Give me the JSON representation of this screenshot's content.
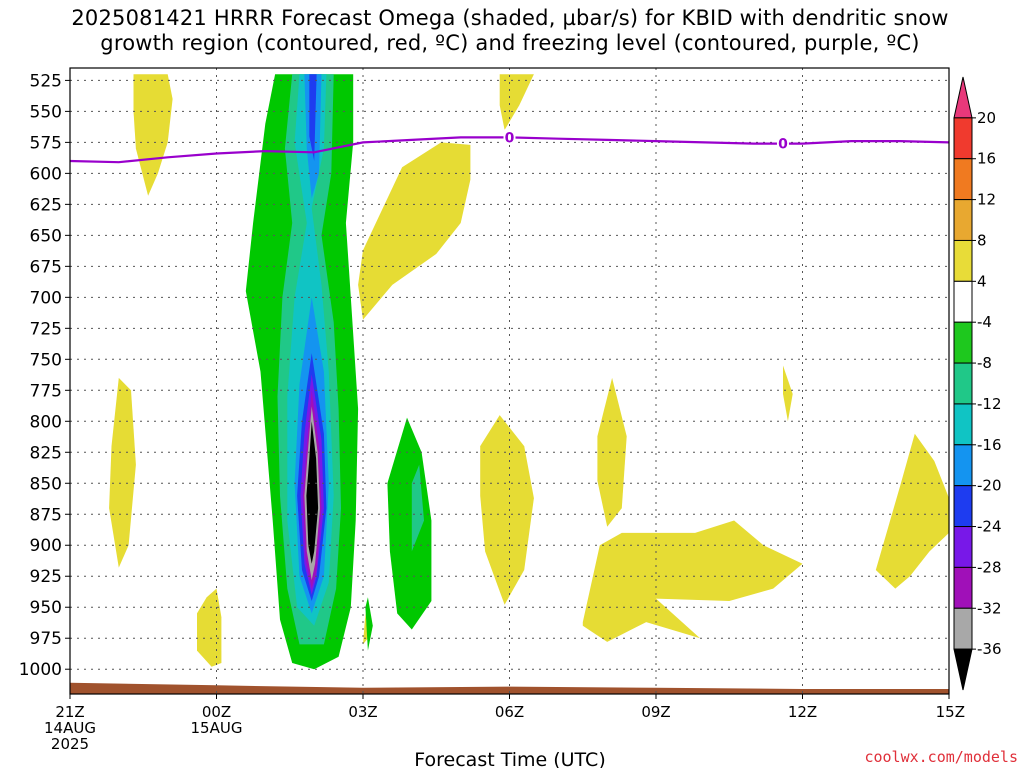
{
  "chart_data": {
    "type": "heatmap",
    "title_lines": [
      "2025081421 HRRR Forecast Omega (shaded, µbar/s) for KBID with dendritic snow",
      "growth region (contoured, red, ºC) and freezing level (contoured, purple, ºC)"
    ],
    "xlabel": "Forecast Time (UTC)",
    "ylabel": "",
    "credit": "coolwx.com/models",
    "x_unit": "hours since 21Z 14AUG 2025",
    "xlim": [
      0,
      18
    ],
    "ylim": [
      1020,
      515
    ],
    "x_ticks": [
      {
        "x": 0,
        "lines": [
          "21Z",
          "14AUG",
          "2025"
        ]
      },
      {
        "x": 3,
        "lines": [
          "00Z",
          "15AUG"
        ]
      },
      {
        "x": 6,
        "lines": [
          "03Z"
        ]
      },
      {
        "x": 9,
        "lines": [
          "06Z"
        ]
      },
      {
        "x": 12,
        "lines": [
          "09Z"
        ]
      },
      {
        "x": 15,
        "lines": [
          "12Z"
        ]
      },
      {
        "x": 18,
        "lines": [
          "15Z"
        ]
      }
    ],
    "y_ticks": [
      525,
      550,
      575,
      600,
      625,
      650,
      675,
      700,
      725,
      750,
      775,
      800,
      825,
      850,
      875,
      900,
      925,
      950,
      975,
      1000
    ],
    "colorbar": {
      "labels": [
        "20",
        "16",
        "12",
        "8",
        "4",
        "-4",
        "-8",
        "-12",
        "-16",
        "-20",
        "-24",
        "-28",
        "-32",
        "-36"
      ],
      "colors": [
        "#e8387a",
        "#f03a2e",
        "#f07a20",
        "#e8a830",
        "#e8dc38",
        "#ffffff",
        "#1ec81e",
        "#20c888",
        "#10c4c4",
        "#1494f0",
        "#1e3cf0",
        "#7818e8",
        "#a010b8",
        "#a8a8a8",
        "#000000"
      ]
    },
    "omega_regions": [
      {
        "level": "4",
        "color": "#e6dc34",
        "points": [
          [
            1.3,
            520
          ],
          [
            2.0,
            520
          ],
          [
            2.1,
            540
          ],
          [
            2.0,
            575
          ],
          [
            1.8,
            600
          ],
          [
            1.6,
            618
          ],
          [
            1.35,
            580
          ],
          [
            1.3,
            550
          ]
        ]
      },
      {
        "level": "4",
        "color": "#e6dc34",
        "points": [
          [
            8.8,
            520
          ],
          [
            9.5,
            520
          ],
          [
            9.2,
            545
          ],
          [
            8.9,
            565
          ],
          [
            8.8,
            545
          ]
        ]
      },
      {
        "level": "4",
        "color": "#e6dc34",
        "points": [
          [
            6.0,
            662
          ],
          [
            6.8,
            595
          ],
          [
            7.6,
            575
          ],
          [
            8.2,
            577
          ],
          [
            8.2,
            605
          ],
          [
            8.0,
            640
          ],
          [
            7.5,
            665
          ],
          [
            6.6,
            690
          ],
          [
            6.0,
            718
          ],
          [
            5.9,
            690
          ]
        ]
      },
      {
        "level": "4",
        "color": "#e6dc34",
        "points": [
          [
            1.0,
            765
          ],
          [
            1.25,
            775
          ],
          [
            1.35,
            835
          ],
          [
            1.2,
            900
          ],
          [
            1.0,
            918
          ],
          [
            0.8,
            870
          ],
          [
            0.85,
            820
          ]
        ]
      },
      {
        "level": "4",
        "color": "#e6dc34",
        "points": [
          [
            3.0,
            935
          ],
          [
            3.1,
            958
          ],
          [
            3.1,
            995
          ],
          [
            2.9,
            998
          ],
          [
            2.6,
            985
          ],
          [
            2.6,
            955
          ],
          [
            2.8,
            942
          ]
        ]
      },
      {
        "level": "4",
        "color": "#e6dc34",
        "points": [
          [
            8.4,
            820
          ],
          [
            8.8,
            795
          ],
          [
            9.3,
            820
          ],
          [
            9.5,
            862
          ],
          [
            9.3,
            920
          ],
          [
            8.9,
            948
          ],
          [
            8.5,
            905
          ],
          [
            8.4,
            860
          ]
        ]
      },
      {
        "level": "4",
        "color": "#e6dc34",
        "points": [
          [
            10.8,
            812
          ],
          [
            11.1,
            765
          ],
          [
            11.4,
            812
          ],
          [
            11.3,
            870
          ],
          [
            11.0,
            885
          ],
          [
            10.8,
            848
          ]
        ]
      },
      {
        "level": "4",
        "color": "#e6dc34",
        "points": [
          [
            14.6,
            755
          ],
          [
            14.8,
            778
          ],
          [
            14.7,
            800
          ],
          [
            14.6,
            778
          ]
        ]
      },
      {
        "level": "4",
        "color": "#e6dc34",
        "points": [
          [
            10.5,
            962
          ],
          [
            10.85,
            900
          ],
          [
            11.3,
            890
          ],
          [
            12.8,
            890
          ],
          [
            13.6,
            880
          ],
          [
            14.2,
            900
          ],
          [
            15.0,
            915
          ],
          [
            14.4,
            935
          ],
          [
            13.5,
            945
          ],
          [
            12.0,
            943
          ],
          [
            12.9,
            975
          ],
          [
            11.8,
            962
          ],
          [
            11.0,
            978
          ],
          [
            10.5,
            965
          ]
        ]
      },
      {
        "level": "4",
        "color": "#e6dc34",
        "points": [
          [
            16.5,
            920
          ],
          [
            17.0,
            852
          ],
          [
            17.3,
            810
          ],
          [
            17.7,
            832
          ],
          [
            18.0,
            862
          ],
          [
            18.0,
            890
          ],
          [
            17.6,
            905
          ],
          [
            17.2,
            925
          ],
          [
            16.9,
            935
          ]
        ]
      },
      {
        "level": "4",
        "color": "#e6dc34",
        "points": [
          [
            6.0,
            980
          ],
          [
            6.05,
            955
          ],
          [
            6.1,
            975
          ]
        ]
      },
      {
        "level": "-4",
        "color": "#00c800",
        "points": [
          [
            4.2,
            520
          ],
          [
            5.8,
            520
          ],
          [
            5.8,
            575
          ],
          [
            5.65,
            640
          ],
          [
            5.75,
            700
          ],
          [
            5.9,
            790
          ],
          [
            5.85,
            880
          ],
          [
            5.75,
            950
          ],
          [
            5.5,
            990
          ],
          [
            5.0,
            1000
          ],
          [
            4.55,
            995
          ],
          [
            4.3,
            960
          ],
          [
            4.15,
            880
          ],
          [
            3.9,
            760
          ],
          [
            3.6,
            695
          ],
          [
            3.75,
            640
          ],
          [
            4.0,
            560
          ]
        ]
      },
      {
        "level": "-4",
        "color": "#00c800",
        "points": [
          [
            6.5,
            850
          ],
          [
            6.9,
            797
          ],
          [
            7.2,
            825
          ],
          [
            7.4,
            880
          ],
          [
            7.4,
            945
          ],
          [
            7.0,
            968
          ],
          [
            6.7,
            955
          ],
          [
            6.55,
            905
          ]
        ]
      },
      {
        "level": "-4",
        "color": "#00c800",
        "points": [
          [
            6.05,
            950
          ],
          [
            6.1,
            942
          ],
          [
            6.2,
            965
          ],
          [
            6.1,
            985
          ]
        ]
      },
      {
        "level": "-8",
        "color": "#20c888",
        "points": [
          [
            4.55,
            520
          ],
          [
            5.4,
            520
          ],
          [
            5.35,
            600
          ],
          [
            5.15,
            650
          ],
          [
            5.4,
            720
          ],
          [
            5.5,
            790
          ],
          [
            5.55,
            870
          ],
          [
            5.45,
            935
          ],
          [
            5.2,
            980
          ],
          [
            4.7,
            980
          ],
          [
            4.45,
            935
          ],
          [
            4.3,
            860
          ],
          [
            4.25,
            780
          ],
          [
            4.35,
            700
          ],
          [
            4.55,
            640
          ],
          [
            4.4,
            580
          ]
        ]
      },
      {
        "level": "-8",
        "color": "#20c888",
        "points": [
          [
            7.0,
            850
          ],
          [
            7.15,
            835
          ],
          [
            7.25,
            880
          ],
          [
            7.0,
            905
          ]
        ]
      },
      {
        "level": "-12",
        "color": "#10c4c4",
        "points": [
          [
            4.7,
            520
          ],
          [
            5.25,
            520
          ],
          [
            5.2,
            580
          ],
          [
            4.95,
            628
          ],
          [
            5.15,
            690
          ],
          [
            5.3,
            760
          ],
          [
            5.4,
            860
          ],
          [
            5.3,
            930
          ],
          [
            5.0,
            965
          ],
          [
            4.65,
            950
          ],
          [
            4.45,
            880
          ],
          [
            4.45,
            780
          ],
          [
            4.6,
            700
          ],
          [
            4.85,
            640
          ],
          [
            4.6,
            575
          ]
        ]
      },
      {
        "level": "-16",
        "color": "#1494f0",
        "points": [
          [
            4.8,
            520
          ],
          [
            5.15,
            520
          ],
          [
            5.1,
            600
          ],
          [
            4.95,
            620
          ],
          [
            4.85,
            580
          ]
        ]
      },
      {
        "level": "-16",
        "color": "#1494f0",
        "points": [
          [
            4.95,
            700
          ],
          [
            5.2,
            760
          ],
          [
            5.3,
            850
          ],
          [
            5.2,
            925
          ],
          [
            4.95,
            955
          ],
          [
            4.7,
            925
          ],
          [
            4.6,
            850
          ],
          [
            4.7,
            770
          ]
        ]
      },
      {
        "level": "-20",
        "color": "#1e3cf0",
        "points": [
          [
            4.9,
            520
          ],
          [
            5.05,
            520
          ],
          [
            5.0,
            590
          ],
          [
            4.9,
            570
          ]
        ]
      },
      {
        "level": "-20",
        "color": "#1e3cf0",
        "points": [
          [
            4.95,
            745
          ],
          [
            5.2,
            810
          ],
          [
            5.25,
            870
          ],
          [
            5.1,
            925
          ],
          [
            4.95,
            945
          ],
          [
            4.75,
            920
          ],
          [
            4.65,
            860
          ],
          [
            4.75,
            800
          ]
        ]
      },
      {
        "level": "-24",
        "color": "#7818e8",
        "points": [
          [
            4.95,
            762
          ],
          [
            5.15,
            815
          ],
          [
            5.2,
            870
          ],
          [
            5.05,
            925
          ],
          [
            4.95,
            940
          ],
          [
            4.8,
            915
          ],
          [
            4.72,
            860
          ],
          [
            4.8,
            810
          ]
        ]
      },
      {
        "level": "-28",
        "color": "#a010b8",
        "points": [
          [
            4.95,
            775
          ],
          [
            5.1,
            820
          ],
          [
            5.15,
            870
          ],
          [
            5.05,
            920
          ],
          [
            4.95,
            935
          ],
          [
            4.82,
            910
          ],
          [
            4.77,
            860
          ],
          [
            4.85,
            820
          ]
        ]
      },
      {
        "level": "-32",
        "color": "#a8a8a8",
        "points": [
          [
            4.95,
            788
          ],
          [
            5.07,
            825
          ],
          [
            5.12,
            870
          ],
          [
            5.02,
            915
          ],
          [
            4.95,
            928
          ],
          [
            4.85,
            905
          ],
          [
            4.8,
            860
          ],
          [
            4.87,
            825
          ]
        ]
      },
      {
        "level": "-36",
        "color": "#000000",
        "points": [
          [
            4.95,
            800
          ],
          [
            5.04,
            830
          ],
          [
            5.08,
            870
          ],
          [
            5.0,
            905
          ],
          [
            4.95,
            915
          ],
          [
            4.88,
            900
          ],
          [
            4.84,
            860
          ],
          [
            4.9,
            830
          ]
        ]
      }
    ],
    "freezing_level": {
      "value_label": "0",
      "color": "#9900cc",
      "x": [
        0,
        1,
        2,
        3,
        4,
        5,
        6,
        7,
        8,
        9,
        10,
        11,
        12,
        13,
        14,
        15,
        16,
        17,
        18
      ],
      "y": [
        590,
        591,
        587,
        584,
        582,
        583,
        575,
        573,
        571,
        571,
        572,
        573,
        574,
        575,
        576,
        576,
        574,
        574,
        575
      ],
      "label_x": [
        9.0,
        14.6
      ]
    },
    "terrain": {
      "color": "#a0522d",
      "x": [
        0,
        3,
        6,
        9,
        12,
        15,
        18
      ],
      "y": [
        1011,
        1013,
        1015,
        1014,
        1015,
        1016,
        1016
      ]
    }
  }
}
